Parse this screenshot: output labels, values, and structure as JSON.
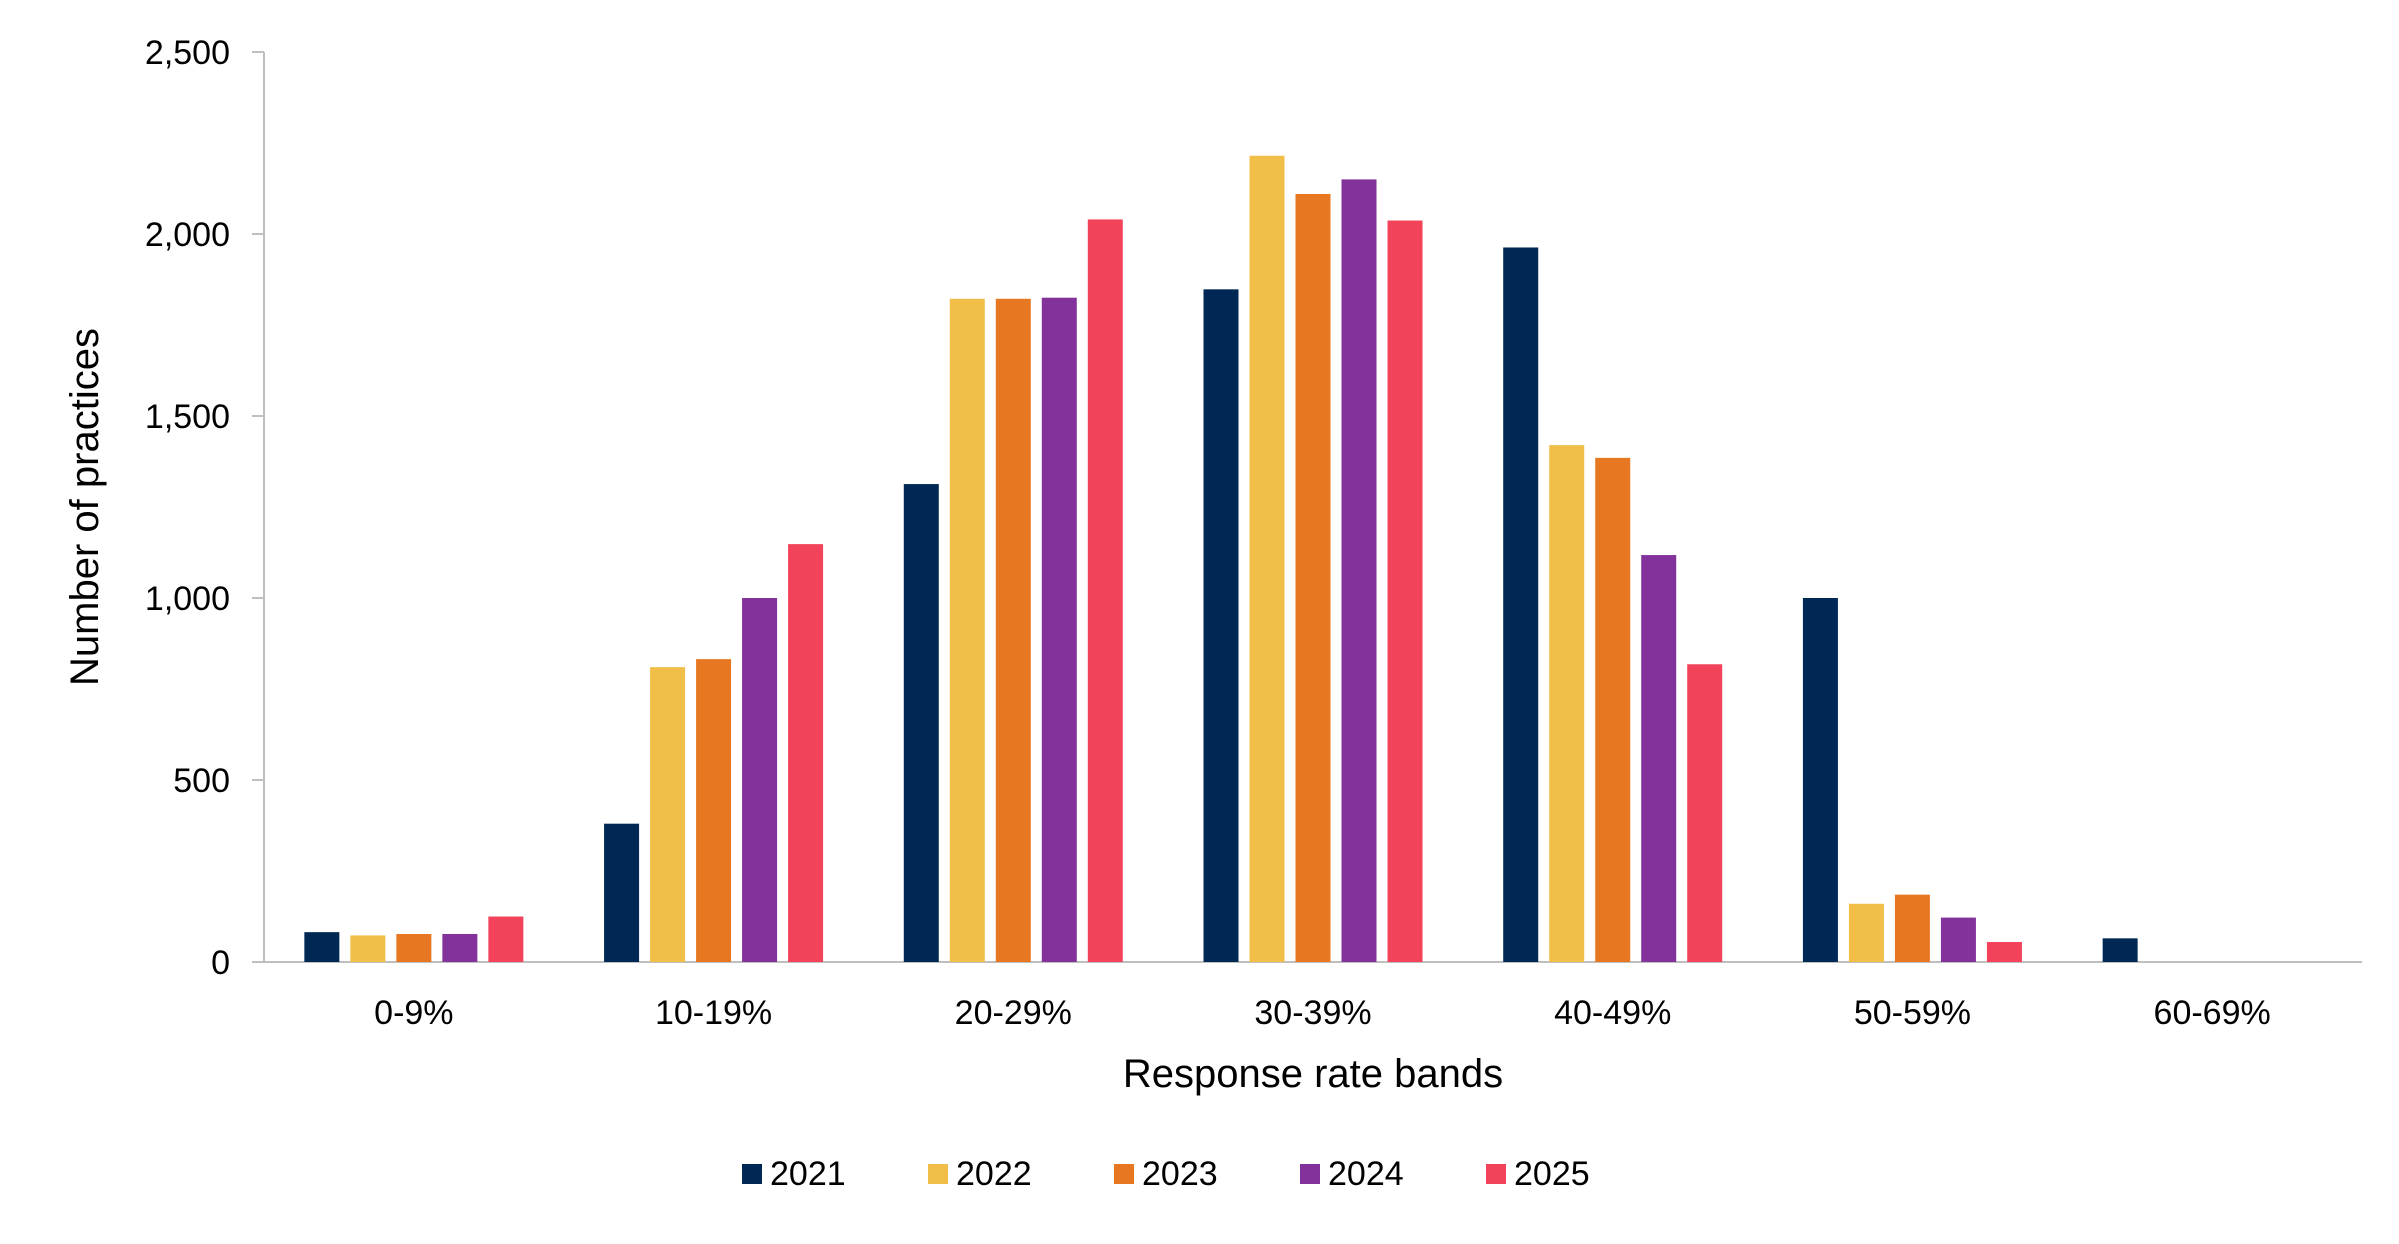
{
  "chart_data": {
    "type": "bar",
    "title": "",
    "xlabel": "Response rate bands",
    "ylabel": "Number of practices",
    "categories": [
      "0-9%",
      "10-19%",
      "20-29%",
      "30-39%",
      "40-49%",
      "50-59%",
      "60-69%"
    ],
    "series": [
      {
        "name": "2021",
        "color": "#002855",
        "values": [
          82,
          380,
          1313,
          1848,
          1963,
          1000,
          65
        ]
      },
      {
        "name": "2022",
        "color": "#F1BE48",
        "values": [
          73,
          810,
          1822,
          2215,
          1420,
          160,
          0
        ]
      },
      {
        "name": "2023",
        "color": "#E87722",
        "values": [
          77,
          832,
          1822,
          2110,
          1385,
          185,
          0
        ]
      },
      {
        "name": "2024",
        "color": "#84329B",
        "values": [
          77,
          1000,
          1825,
          2150,
          1118,
          122,
          0
        ]
      },
      {
        "name": "2025",
        "color": "#F2435A",
        "values": [
          125,
          1148,
          2040,
          2037,
          818,
          55,
          0
        ]
      }
    ],
    "ylim": [
      0,
      2500
    ],
    "yticks": [
      0,
      500,
      1000,
      1500,
      2000,
      2500
    ],
    "ytick_labels": [
      "0",
      "500",
      "1,000",
      "1,500",
      "2,000",
      "2,500"
    ],
    "grid": false,
    "legend_position": "bottom"
  }
}
